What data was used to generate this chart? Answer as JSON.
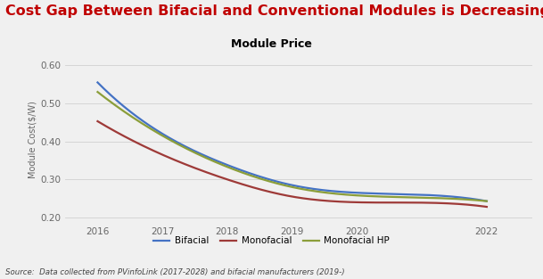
{
  "title": "Cost Gap Between Bifacial and Conventional Modules is Decreasing",
  "subtitle": "Module Price",
  "ylabel": "Module Cost($/W)",
  "source": "Source:  Data collected from PVinfoLink (2017-2028) and bifacial manufacturers (2019-)",
  "years": [
    2016,
    2017,
    2018,
    2019,
    2020,
    2022
  ],
  "bifacial": [
    0.555,
    0.42,
    0.338,
    0.285,
    0.265,
    0.243
  ],
  "monofacial": [
    0.453,
    0.365,
    0.3,
    0.255,
    0.24,
    0.228
  ],
  "monofacial_hp": [
    0.53,
    0.415,
    0.333,
    0.28,
    0.258,
    0.243
  ],
  "bifacial_color": "#4472C4",
  "monofacial_color": "#9E3A38",
  "monofacial_hp_color": "#8B9E3A",
  "title_color": "#C00000",
  "subtitle_color": "#000000",
  "background_color": "#F0F0F0",
  "ylim": [
    0.185,
    0.625
  ],
  "yticks": [
    0.2,
    0.3,
    0.4,
    0.5,
    0.6
  ],
  "ytick_labels": [
    "0.20",
    "0.30",
    "0.40",
    "0.50",
    "0.60"
  ],
  "xlim": [
    2015.5,
    2022.7
  ]
}
